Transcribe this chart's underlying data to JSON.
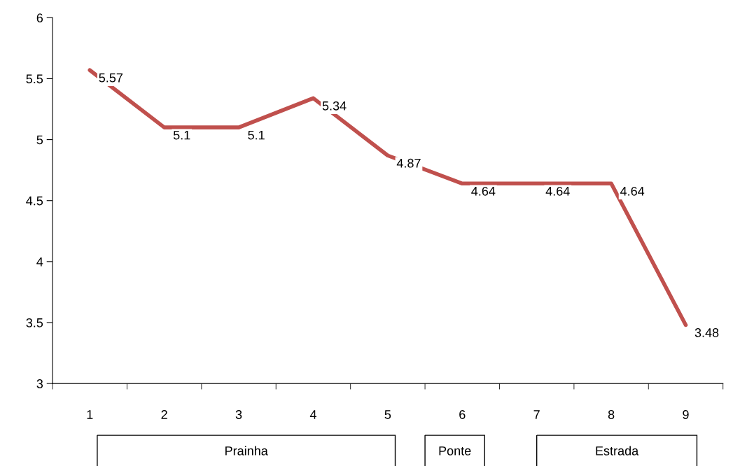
{
  "chart_data": {
    "type": "line",
    "categories": [
      "1",
      "2",
      "3",
      "4",
      "5",
      "6",
      "7",
      "8",
      "9"
    ],
    "series": [
      {
        "color": "#c0504d",
        "values": [
          5.57,
          5.1,
          5.1,
          5.34,
          4.87,
          4.64,
          4.64,
          4.64,
          3.48
        ]
      }
    ],
    "ylim": [
      3,
      6
    ],
    "yticks": [
      3,
      3.5,
      4,
      4.5,
      5,
      5.5,
      6
    ],
    "data_labels": true,
    "grid": false,
    "legend": false,
    "marker": "none",
    "line_style": "solid",
    "annotations": [
      "Prainha",
      "Ponte",
      "Estrada"
    ]
  }
}
